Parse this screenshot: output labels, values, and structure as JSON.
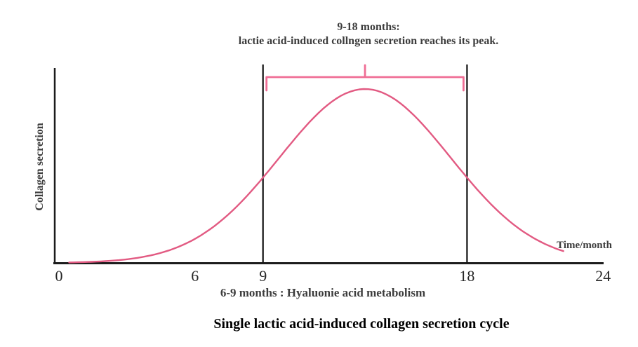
{
  "chart_data": {
    "type": "line",
    "title": "Single lactic acid-induced collagen secretion cycle",
    "xlabel": "Time/month",
    "ylabel": "Collagen secretion",
    "x_ticks": [
      0,
      6,
      9,
      18,
      24
    ],
    "xlim": [
      0,
      24
    ],
    "grid": false,
    "legend": "none",
    "curve": {
      "shape": "gaussian",
      "center": 13.5,
      "sigma": 3.77,
      "peak_value": 1.0,
      "x_visible": [
        0.45,
        22.3
      ],
      "description": "bell-shaped single collagen secretion cycle curve"
    },
    "highlight_range": {
      "from": 9,
      "to": 18
    },
    "annotations": {
      "top_line1": "9-18 months:",
      "top_line2": "lactie acid-induced collngen secretion reaches its peak.",
      "bottom_caption": "6-9 months : Hyaluonie acid metabolism"
    },
    "colors": {
      "curve": "#e25a82",
      "bracket": "#ef6e95",
      "axis": "#1c1c1c",
      "marker_line": "#111111",
      "annotation_text": "#3d3d3d",
      "tick_text": "#262626",
      "title_text": "#000000"
    }
  }
}
